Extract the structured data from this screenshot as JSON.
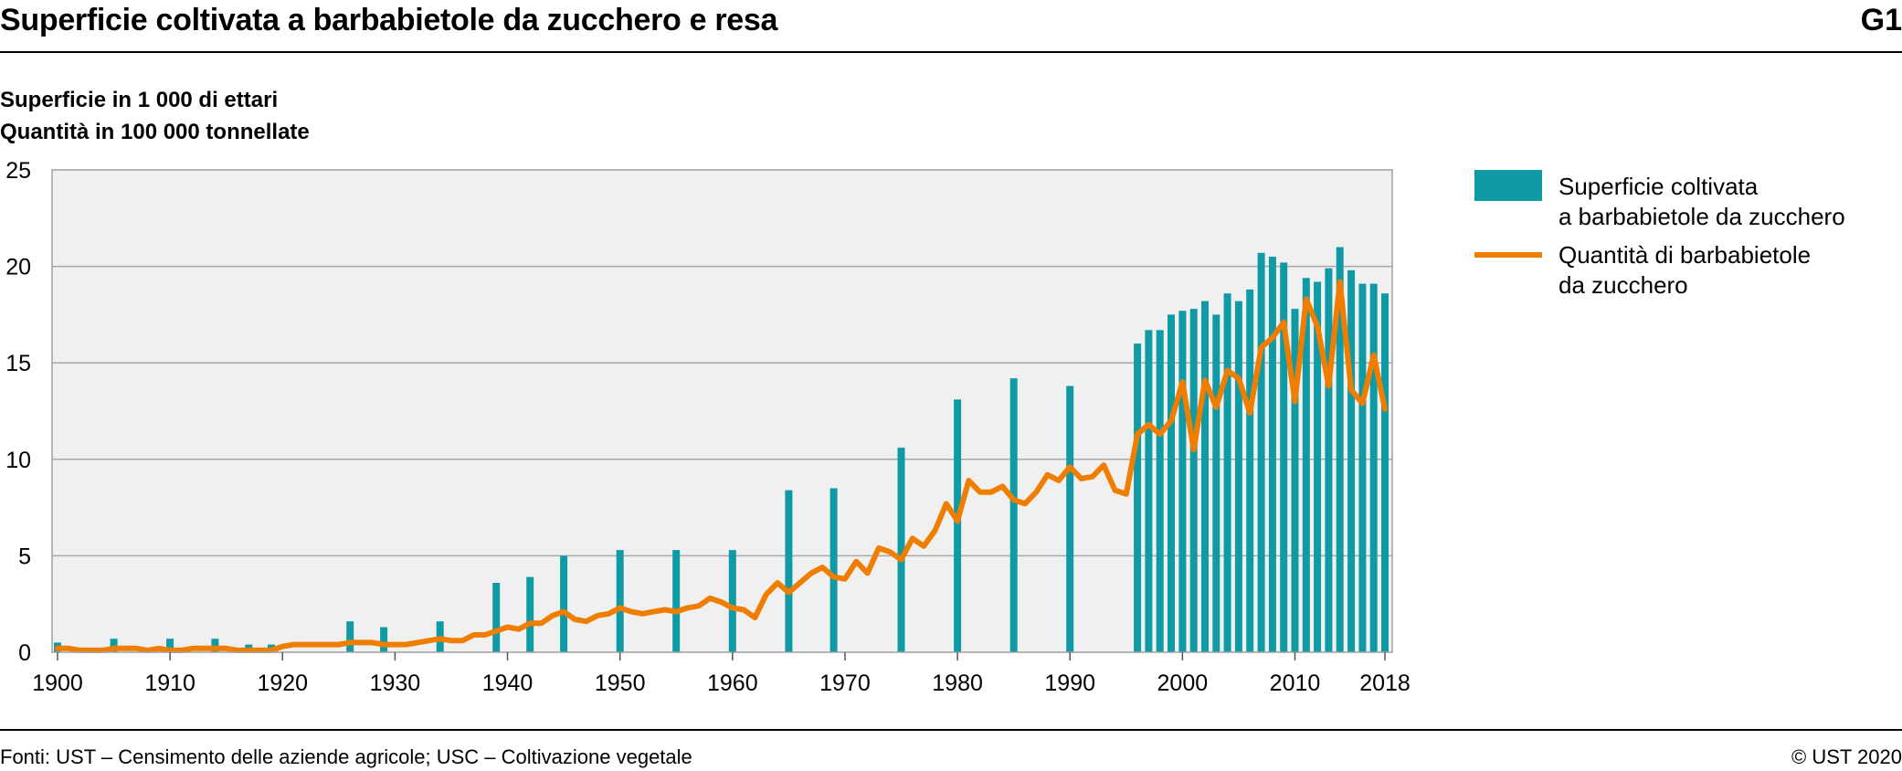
{
  "header": {
    "title": "Superficie coltivata a barbabietole da zucchero e resa",
    "chart_id": "G1"
  },
  "subtitle": {
    "line1": "Superficie in 1 000 di ettari",
    "line2": "Quantità in 100 000 tonnellate"
  },
  "footer": {
    "source": "Fonti: UST – Censimento delle aziende agricole; USC – Coltivazione vegetale",
    "copyright": "© UST 2020"
  },
  "colors": {
    "bars": "#0f9aa5",
    "line": "#ef7d00",
    "plot_bg": "#f0f0f0",
    "grid": "#a8a8a8"
  },
  "chart_data": {
    "type": "bar",
    "xlim": [
      1900,
      2018
    ],
    "ylim": [
      0,
      25
    ],
    "y_ticks": [
      0,
      5,
      10,
      15,
      20,
      25
    ],
    "x_ticks": [
      1900,
      1910,
      1920,
      1930,
      1940,
      1950,
      1960,
      1970,
      1980,
      1990,
      2000,
      2010,
      2018
    ],
    "grid": true,
    "legend_position": "right",
    "series": [
      {
        "name_lines": [
          "Superficie coltivata",
          "a barbabietole da zucchero"
        ],
        "type": "bar",
        "points": [
          [
            1900,
            0.5
          ],
          [
            1905,
            0.7
          ],
          [
            1910,
            0.7
          ],
          [
            1914,
            0.7
          ],
          [
            1917,
            0.4
          ],
          [
            1919,
            0.4
          ],
          [
            1926,
            1.6
          ],
          [
            1929,
            1.3
          ],
          [
            1934,
            1.6
          ],
          [
            1939,
            3.6
          ],
          [
            1942,
            3.9
          ],
          [
            1945,
            5.0
          ],
          [
            1950,
            5.3
          ],
          [
            1955,
            5.3
          ],
          [
            1960,
            5.3
          ],
          [
            1965,
            8.4
          ],
          [
            1969,
            8.5
          ],
          [
            1975,
            10.6
          ],
          [
            1980,
            13.1
          ],
          [
            1985,
            14.2
          ],
          [
            1990,
            13.8
          ],
          [
            1996,
            16.0
          ],
          [
            1997,
            16.7
          ],
          [
            1998,
            16.7
          ],
          [
            1999,
            17.5
          ],
          [
            2000,
            17.7
          ],
          [
            2001,
            17.8
          ],
          [
            2002,
            18.2
          ],
          [
            2003,
            17.5
          ],
          [
            2004,
            18.6
          ],
          [
            2005,
            18.2
          ],
          [
            2006,
            18.8
          ],
          [
            2007,
            20.7
          ],
          [
            2008,
            20.5
          ],
          [
            2009,
            20.2
          ],
          [
            2010,
            17.8
          ],
          [
            2011,
            19.4
          ],
          [
            2012,
            19.2
          ],
          [
            2013,
            19.9
          ],
          [
            2014,
            21.0
          ],
          [
            2015,
            19.8
          ],
          [
            2016,
            19.1
          ],
          [
            2017,
            19.1
          ],
          [
            2018,
            18.6
          ]
        ]
      },
      {
        "name_lines": [
          "Quantità di barbabietole",
          "da zucchero"
        ],
        "type": "line",
        "points": [
          [
            1900,
            0.2
          ],
          [
            1901,
            0.2
          ],
          [
            1902,
            0.1
          ],
          [
            1903,
            0.1
          ],
          [
            1904,
            0.1
          ],
          [
            1905,
            0.2
          ],
          [
            1906,
            0.2
          ],
          [
            1907,
            0.2
          ],
          [
            1908,
            0.1
          ],
          [
            1909,
            0.2
          ],
          [
            1910,
            0.1
          ],
          [
            1911,
            0.1
          ],
          [
            1912,
            0.2
          ],
          [
            1913,
            0.2
          ],
          [
            1914,
            0.2
          ],
          [
            1915,
            0.2
          ],
          [
            1916,
            0.1
          ],
          [
            1917,
            0.1
          ],
          [
            1918,
            0.1
          ],
          [
            1919,
            0.1
          ],
          [
            1920,
            0.3
          ],
          [
            1921,
            0.4
          ],
          [
            1922,
            0.4
          ],
          [
            1923,
            0.4
          ],
          [
            1924,
            0.4
          ],
          [
            1925,
            0.4
          ],
          [
            1926,
            0.5
          ],
          [
            1927,
            0.5
          ],
          [
            1928,
            0.5
          ],
          [
            1929,
            0.4
          ],
          [
            1930,
            0.4
          ],
          [
            1931,
            0.4
          ],
          [
            1932,
            0.5
          ],
          [
            1933,
            0.6
          ],
          [
            1934,
            0.7
          ],
          [
            1935,
            0.6
          ],
          [
            1936,
            0.6
          ],
          [
            1937,
            0.9
          ],
          [
            1938,
            0.9
          ],
          [
            1939,
            1.1
          ],
          [
            1940,
            1.3
          ],
          [
            1941,
            1.2
          ],
          [
            1942,
            1.5
          ],
          [
            1943,
            1.5
          ],
          [
            1944,
            1.9
          ],
          [
            1945,
            2.1
          ],
          [
            1946,
            1.7
          ],
          [
            1947,
            1.6
          ],
          [
            1948,
            1.9
          ],
          [
            1949,
            2.0
          ],
          [
            1950,
            2.3
          ],
          [
            1951,
            2.1
          ],
          [
            1952,
            2.0
          ],
          [
            1953,
            2.1
          ],
          [
            1954,
            2.2
          ],
          [
            1955,
            2.1
          ],
          [
            1956,
            2.3
          ],
          [
            1957,
            2.4
          ],
          [
            1958,
            2.8
          ],
          [
            1959,
            2.6
          ],
          [
            1960,
            2.3
          ],
          [
            1961,
            2.2
          ],
          [
            1962,
            1.8
          ],
          [
            1963,
            3.0
          ],
          [
            1964,
            3.6
          ],
          [
            1965,
            3.1
          ],
          [
            1966,
            3.6
          ],
          [
            1967,
            4.1
          ],
          [
            1968,
            4.4
          ],
          [
            1969,
            3.9
          ],
          [
            1970,
            3.8
          ],
          [
            1971,
            4.7
          ],
          [
            1972,
            4.1
          ],
          [
            1973,
            5.4
          ],
          [
            1974,
            5.2
          ],
          [
            1975,
            4.8
          ],
          [
            1976,
            5.9
          ],
          [
            1977,
            5.5
          ],
          [
            1978,
            6.3
          ],
          [
            1979,
            7.7
          ],
          [
            1980,
            6.8
          ],
          [
            1981,
            8.9
          ],
          [
            1982,
            8.3
          ],
          [
            1983,
            8.3
          ],
          [
            1984,
            8.6
          ],
          [
            1985,
            7.9
          ],
          [
            1986,
            7.7
          ],
          [
            1987,
            8.3
          ],
          [
            1988,
            9.2
          ],
          [
            1989,
            8.9
          ],
          [
            1990,
            9.6
          ],
          [
            1991,
            9.0
          ],
          [
            1992,
            9.1
          ],
          [
            1993,
            9.7
          ],
          [
            1994,
            8.4
          ],
          [
            1995,
            8.2
          ],
          [
            1996,
            11.3
          ],
          [
            1997,
            11.8
          ],
          [
            1998,
            11.3
          ],
          [
            1999,
            12.0
          ],
          [
            2000,
            14.0
          ],
          [
            2001,
            10.5
          ],
          [
            2002,
            14.1
          ],
          [
            2003,
            12.7
          ],
          [
            2004,
            14.6
          ],
          [
            2005,
            14.2
          ],
          [
            2006,
            12.4
          ],
          [
            2007,
            15.8
          ],
          [
            2008,
            16.3
          ],
          [
            2009,
            17.1
          ],
          [
            2010,
            13.0
          ],
          [
            2011,
            18.3
          ],
          [
            2012,
            16.9
          ],
          [
            2013,
            13.8
          ],
          [
            2014,
            19.2
          ],
          [
            2015,
            13.6
          ],
          [
            2016,
            12.9
          ],
          [
            2017,
            15.4
          ],
          [
            2018,
            12.6
          ]
        ]
      }
    ]
  }
}
